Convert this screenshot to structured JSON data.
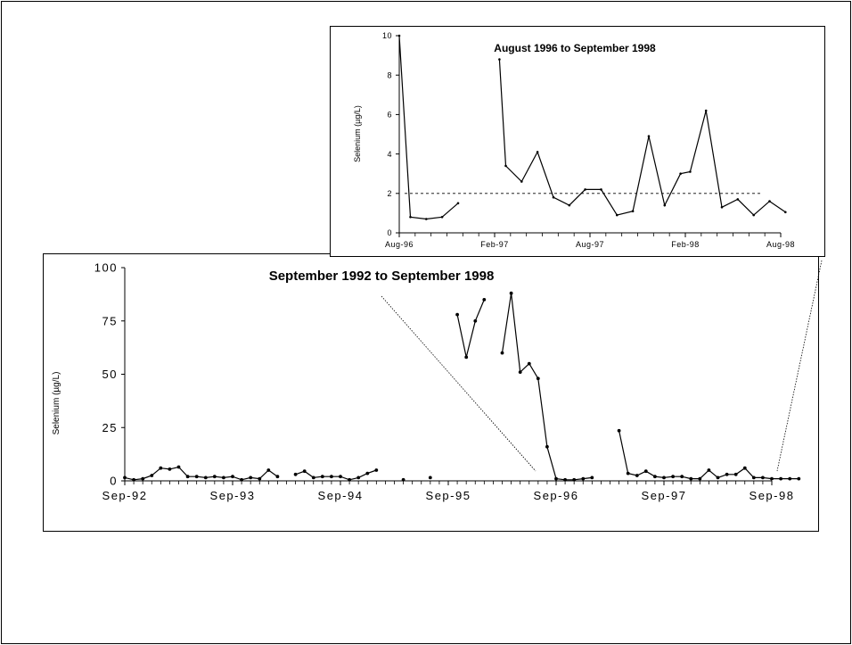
{
  "chart_data": [
    {
      "id": "main",
      "type": "line",
      "title": "September 1992 to September 1998",
      "xlabel": "",
      "ylabel": "Selenium (µg/L)",
      "ylim": [
        0,
        100
      ],
      "yticks": [
        0,
        25,
        50,
        75,
        100
      ],
      "xticks": [
        {
          "label": "Sep-92",
          "t": 0
        },
        {
          "label": "Sep-93",
          "t": 12
        },
        {
          "label": "Sep-94",
          "t": 24
        },
        {
          "label": "Sep-95",
          "t": 36
        },
        {
          "label": "Sep-96",
          "t": 48
        },
        {
          "label": "Sep-97",
          "t": 60
        },
        {
          "label": "Sep-98",
          "t": 72
        }
      ],
      "segments": [
        [
          [
            0,
            1.5
          ],
          [
            1,
            0.5
          ],
          [
            2,
            1
          ],
          [
            3,
            2.5
          ],
          [
            4,
            6
          ],
          [
            5,
            5.5
          ],
          [
            6,
            6.5
          ],
          [
            7,
            2
          ],
          [
            8,
            2
          ],
          [
            9,
            1.5
          ],
          [
            10,
            2
          ],
          [
            11,
            1.5
          ],
          [
            12,
            2
          ],
          [
            13,
            0.5
          ],
          [
            14,
            1.5
          ],
          [
            15,
            1
          ],
          [
            16,
            5
          ],
          [
            17,
            2
          ]
        ],
        [
          [
            19,
            3
          ],
          [
            20,
            4.5
          ],
          [
            21,
            1.5
          ],
          [
            22,
            2
          ],
          [
            23,
            2
          ],
          [
            24,
            2
          ],
          [
            25,
            0.5
          ],
          [
            26,
            1.5
          ],
          [
            27,
            3.5
          ],
          [
            28,
            5
          ]
        ],
        [
          [
            31,
            0.5
          ]
        ],
        [
          [
            34,
            1.5
          ]
        ],
        [
          [
            37,
            78
          ],
          [
            38,
            58
          ],
          [
            39,
            75
          ],
          [
            40,
            85
          ]
        ],
        [
          [
            42,
            60
          ],
          [
            43,
            88
          ],
          [
            44,
            51
          ],
          [
            45,
            55
          ],
          [
            46,
            48
          ],
          [
            47,
            16
          ],
          [
            48,
            1
          ],
          [
            49,
            0.5
          ],
          [
            50,
            0.5
          ],
          [
            51,
            1
          ],
          [
            52,
            1.5
          ]
        ],
        [
          [
            55,
            23.5
          ],
          [
            56,
            3.5
          ],
          [
            57,
            2.5
          ],
          [
            58,
            4.5
          ],
          [
            59,
            2
          ],
          [
            60,
            1.5
          ],
          [
            61,
            2
          ],
          [
            62,
            2
          ],
          [
            63,
            1
          ],
          [
            64,
            1
          ],
          [
            65,
            5
          ],
          [
            66,
            1.5
          ],
          [
            67,
            3
          ],
          [
            68,
            3
          ],
          [
            69,
            6
          ],
          [
            70,
            1.5
          ],
          [
            71,
            1.5
          ],
          [
            72,
            1
          ],
          [
            73,
            1
          ],
          [
            74,
            1
          ],
          [
            75,
            1
          ]
        ]
      ]
    },
    {
      "id": "inset",
      "type": "line",
      "title": "August 1996 to September 1998",
      "xlabel": "",
      "ylabel": "Selenium (µg/L)",
      "ylim": [
        0,
        10
      ],
      "yticks": [
        0,
        2,
        4,
        6,
        8,
        10
      ],
      "xticks": [
        {
          "label": "Aug-96",
          "t": 0
        },
        {
          "label": "Feb-97",
          "t": 6
        },
        {
          "label": "Aug-97",
          "t": 12
        },
        {
          "label": "Feb-98",
          "t": 18
        },
        {
          "label": "Aug-98",
          "t": 24
        }
      ],
      "reference_line": 2,
      "segments": [
        [
          [
            0,
            10
          ],
          [
            0.7,
            0.8
          ],
          [
            1.7,
            0.7
          ],
          [
            2.7,
            0.8
          ],
          [
            3.7,
            1.5
          ]
        ],
        [
          [
            6.3,
            8.8
          ],
          [
            6.7,
            3.4
          ],
          [
            7.7,
            2.6
          ],
          [
            8.7,
            4.1
          ],
          [
            9.7,
            1.8
          ],
          [
            10.7,
            1.4
          ],
          [
            11.7,
            2.2
          ],
          [
            12.7,
            2.2
          ],
          [
            13.7,
            0.9
          ],
          [
            14.7,
            1.1
          ],
          [
            15.7,
            4.9
          ],
          [
            16.7,
            1.4
          ],
          [
            17.7,
            3
          ],
          [
            18.3,
            3.1
          ],
          [
            19.3,
            6.2
          ],
          [
            20.3,
            1.3
          ],
          [
            21.3,
            1.7
          ],
          [
            22.3,
            0.9
          ],
          [
            23.3,
            1.6
          ],
          [
            24.3,
            1.05
          ]
        ]
      ]
    }
  ]
}
